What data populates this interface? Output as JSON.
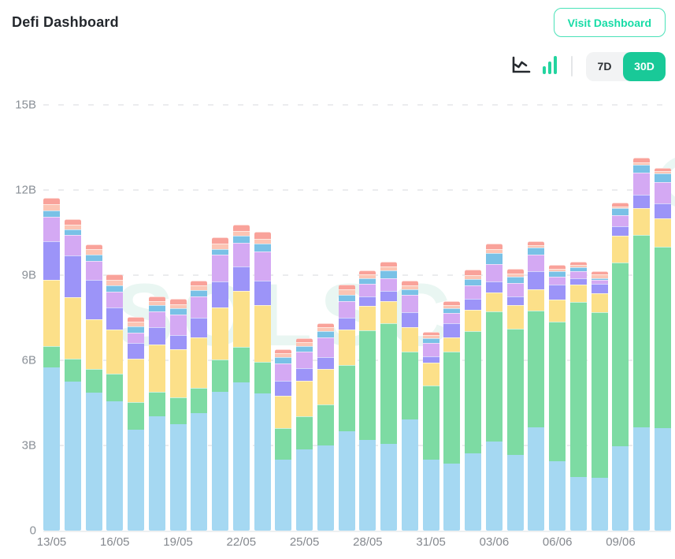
{
  "header": {
    "title": "Defi Dashboard",
    "visit_button_label": "Visit Dashboard"
  },
  "controls": {
    "range_7d_label": "7D",
    "range_30d_label": "30D",
    "selected_range": "30D"
  },
  "colors": {
    "accent_teal": "#16DCA6",
    "range_active_bg": "#19C998",
    "bar_chart_icon": "#23D49F",
    "line_chart_icon": "#25292e",
    "axis_text": "#8A9097",
    "gridline": "#EBECEE",
    "watermark": "#E9F6F2"
  },
  "watermark": {
    "text": "SOLSC"
  },
  "chart_data": {
    "type": "bar",
    "stacked": true,
    "title": "",
    "xlabel": "",
    "ylabel": "",
    "unit": "billions (B)",
    "ylim": [
      0,
      15
    ],
    "grid": "horizontal-dashed",
    "legend": "none",
    "y_ticks": [
      {
        "label": "15B",
        "value": 15
      },
      {
        "label": "12B",
        "value": 12
      },
      {
        "label": "9B",
        "value": 9
      },
      {
        "label": "6B",
        "value": 6
      },
      {
        "label": "3B",
        "value": 3
      },
      {
        "label": "0",
        "value": 0
      }
    ],
    "x_tick_every": 3,
    "categories": [
      "13/05",
      "14/05",
      "15/05",
      "16/05",
      "17/05",
      "18/05",
      "19/05",
      "20/05",
      "21/05",
      "22/05",
      "23/05",
      "24/05",
      "25/05",
      "26/05",
      "27/05",
      "28/05",
      "29/05",
      "30/05",
      "31/05",
      "01/06",
      "02/06",
      "03/06",
      "04/06",
      "05/06",
      "06/06",
      "07/06",
      "08/06",
      "09/06",
      "10/06",
      "11/06"
    ],
    "series": [
      {
        "name": "sky-blue",
        "color": "#A5D8F2",
        "values": [
          5.75,
          5.24,
          4.87,
          4.55,
          3.56,
          4.04,
          3.74,
          4.13,
          4.88,
          5.22,
          4.83,
          2.51,
          2.86,
          3.0,
          3.51,
          3.19,
          3.05,
          3.93,
          2.51,
          2.35,
          2.72,
          3.14,
          2.66,
          3.65,
          2.44,
          1.89,
          1.86,
          2.97,
          3.65,
          3.62
        ]
      },
      {
        "name": "green",
        "color": "#7DDBA3",
        "values": [
          0.75,
          0.83,
          0.83,
          0.97,
          0.97,
          0.86,
          0.95,
          0.91,
          1.15,
          1.25,
          1.11,
          1.09,
          1.16,
          1.44,
          2.33,
          3.88,
          4.26,
          2.38,
          2.59,
          3.96,
          4.31,
          4.58,
          4.46,
          4.1,
          4.91,
          6.17,
          5.83,
          6.48,
          6.76,
          6.39
        ]
      },
      {
        "name": "yellow",
        "color": "#FCE089",
        "values": [
          2.33,
          2.16,
          1.74,
          1.57,
          1.54,
          1.66,
          1.69,
          1.77,
          1.83,
          1.99,
          2.0,
          1.16,
          1.27,
          1.25,
          1.23,
          0.84,
          0.78,
          0.86,
          0.82,
          0.49,
          0.76,
          0.68,
          0.82,
          0.76,
          0.79,
          0.62,
          0.68,
          0.93,
          0.95,
          0.98
        ]
      },
      {
        "name": "periwinkle",
        "color": "#9C94F8",
        "values": [
          1.37,
          1.46,
          1.39,
          0.77,
          0.54,
          0.61,
          0.51,
          0.68,
          0.91,
          0.86,
          0.87,
          0.51,
          0.44,
          0.41,
          0.44,
          0.34,
          0.35,
          0.51,
          0.23,
          0.51,
          0.37,
          0.39,
          0.31,
          0.63,
          0.54,
          0.2,
          0.32,
          0.33,
          0.48,
          0.53
        ]
      },
      {
        "name": "lavender",
        "color": "#D4A9F3",
        "values": [
          0.87,
          0.72,
          0.67,
          0.56,
          0.37,
          0.55,
          0.72,
          0.77,
          0.94,
          0.81,
          1.01,
          0.63,
          0.58,
          0.72,
          0.58,
          0.44,
          0.46,
          0.63,
          0.46,
          0.37,
          0.49,
          0.6,
          0.46,
          0.57,
          0.27,
          0.26,
          0.14,
          0.41,
          0.76,
          0.77
        ]
      },
      {
        "name": "blue",
        "color": "#79C1E6",
        "values": [
          0.22,
          0.2,
          0.24,
          0.21,
          0.21,
          0.21,
          0.22,
          0.22,
          0.21,
          0.25,
          0.28,
          0.2,
          0.18,
          0.21,
          0.22,
          0.21,
          0.26,
          0.2,
          0.16,
          0.16,
          0.2,
          0.4,
          0.24,
          0.26,
          0.19,
          0.13,
          0.07,
          0.24,
          0.28,
          0.29
        ]
      },
      {
        "name": "salmon-light",
        "color": "#FCC5B4",
        "values": [
          0.21,
          0.17,
          0.18,
          0.2,
          0.16,
          0.15,
          0.15,
          0.17,
          0.18,
          0.18,
          0.19,
          0.14,
          0.15,
          0.14,
          0.19,
          0.12,
          0.14,
          0.14,
          0.12,
          0.11,
          0.14,
          0.13,
          0.11,
          0.09,
          0.09,
          0.09,
          0.12,
          0.07,
          0.09,
          0.08
        ]
      },
      {
        "name": "salmon-red",
        "color": "#F9A29A",
        "values": [
          0.22,
          0.18,
          0.18,
          0.19,
          0.19,
          0.17,
          0.18,
          0.16,
          0.24,
          0.23,
          0.24,
          0.14,
          0.13,
          0.14,
          0.18,
          0.16,
          0.16,
          0.16,
          0.12,
          0.14,
          0.21,
          0.18,
          0.17,
          0.13,
          0.14,
          0.12,
          0.12,
          0.13,
          0.17,
          0.13
        ]
      }
    ]
  }
}
